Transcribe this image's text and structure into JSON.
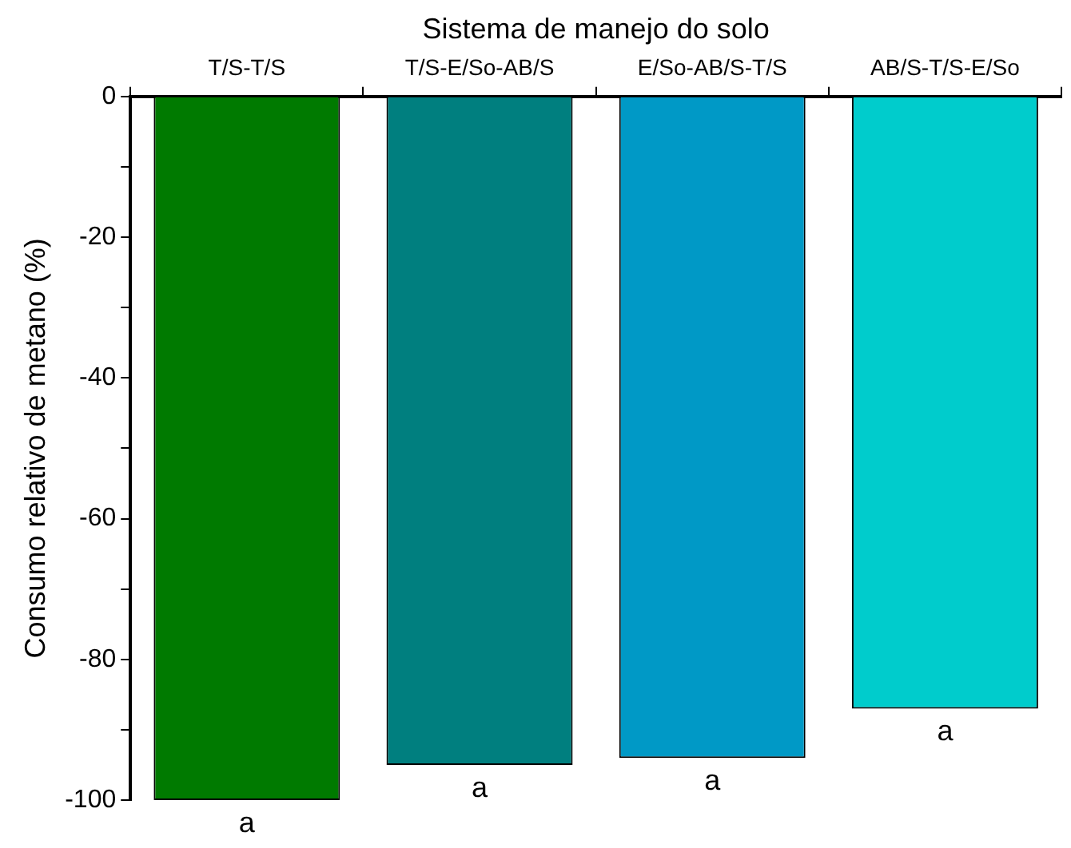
{
  "chart_data": {
    "type": "bar",
    "xlabel": "Sistema de manejo do solo",
    "ylabel": "Consumo relativo de metano (%)",
    "categories": [
      "T/S-T/S",
      "T/S-E/So-AB/S",
      "E/So-AB/S-T/S",
      "AB/S-T/S-E/So"
    ],
    "values": [
      -100,
      -95,
      -94,
      -87
    ],
    "colors": [
      "#007a00",
      "#007f7f",
      "#0099c6",
      "#00cccc"
    ],
    "ylim": [
      -100,
      0
    ],
    "yticks": [
      0,
      {
        "value": -10,
        "label": null
      },
      -20,
      {
        "value": -30,
        "label": null
      },
      -40,
      {
        "value": -50,
        "label": null
      },
      -60,
      {
        "value": -70,
        "label": null
      },
      -80,
      {
        "value": -90,
        "label": null
      },
      -100
    ],
    "annotations": [
      {
        "text": "a",
        "x": "T/S-T/S",
        "y": -100
      },
      {
        "text": "a",
        "x": "T/S-E/So-AB/S",
        "y": -95
      },
      {
        "text": "a",
        "x": "E/So-AB/S-T/S",
        "y": -94
      },
      {
        "text": "a",
        "x": "AB/S-T/S-E/So",
        "y": -87
      }
    ],
    "grid": false,
    "legend": false
  }
}
